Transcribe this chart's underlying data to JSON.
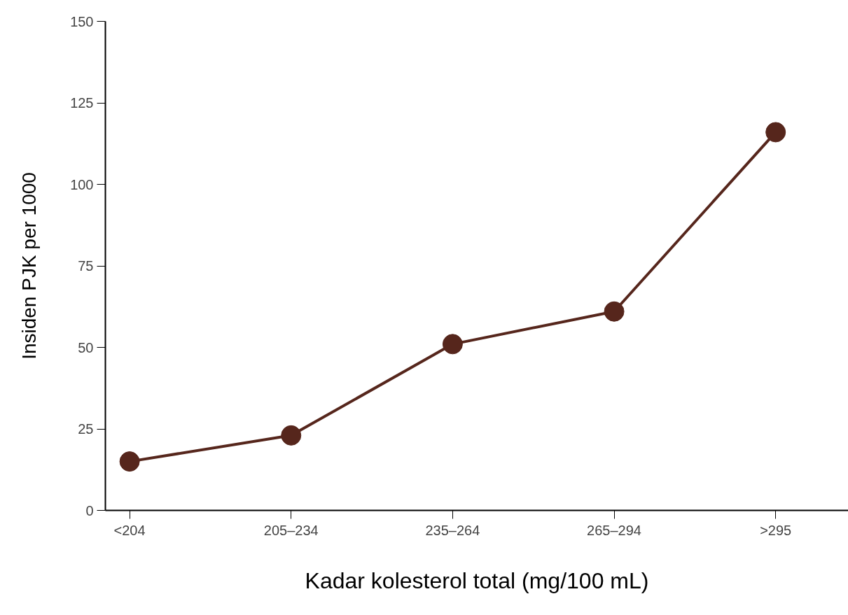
{
  "chart_data": {
    "type": "line",
    "xlabel": "Kadar kolesterol total (mg/100 mL)",
    "ylabel": "Insiden PJK per 1000",
    "categories": [
      "<204",
      "205–234",
      "235–264",
      "265–294",
      ">295"
    ],
    "series": [
      {
        "color": "#56261c",
        "values": [
          15,
          23,
          51,
          61,
          116
        ]
      }
    ],
    "ylim": [
      0,
      150
    ],
    "yticks": [
      0,
      25,
      50,
      75,
      100,
      125,
      150
    ],
    "grid": false,
    "marker": "circle",
    "line_style": "solid"
  }
}
